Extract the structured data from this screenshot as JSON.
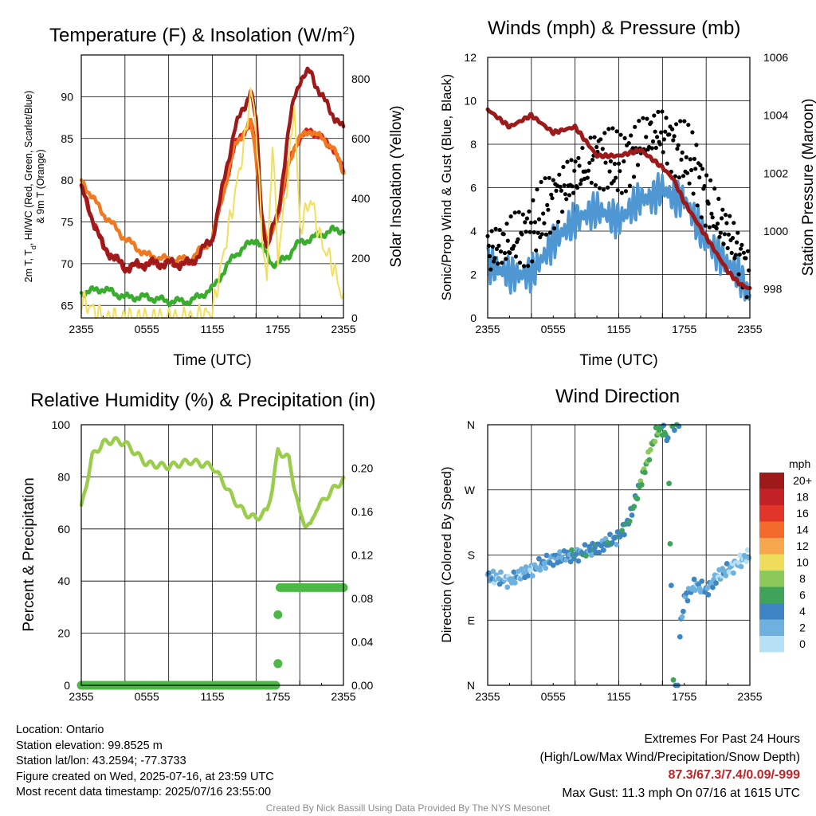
{
  "chart_data": [
    {
      "type": "line",
      "title": "Temperature (F) & Insolation (W/m2)",
      "title_main": "Temperature (F) & Insolation (W/m",
      "title_sup": "2",
      "title_end": ")",
      "xlabel": "Time (UTC)",
      "ylabel_line1": "2m T, T",
      "ylabel_sub": "d",
      "ylabel_line1_end": ", HI/WC (Red, Green, Scarlet/Blue)",
      "ylabel_line2": "& 9m T (Orange)",
      "y2label": "Solar Insolation (Yellow)",
      "x_ticks": [
        "2355",
        "0555",
        "1155",
        "1755",
        "2355"
      ],
      "y_ticks": [
        65,
        70,
        75,
        80,
        85,
        90
      ],
      "y2_ticks": [
        0,
        200,
        400,
        600,
        800
      ],
      "ylim": [
        63.5,
        95
      ],
      "y2lim": [
        0,
        880
      ],
      "x_hours": [
        0,
        2,
        4,
        6,
        8,
        10,
        12,
        14,
        15,
        15.5,
        16,
        16.5,
        17,
        17.5,
        18,
        19,
        19.5,
        20,
        21,
        22,
        23,
        24
      ],
      "series": [
        {
          "name": "2m T",
          "color": "#d7191c",
          "values": [
            79,
            72,
            69.5,
            70,
            70,
            70,
            73,
            84,
            86,
            87,
            84,
            76,
            72,
            74,
            76,
            82,
            84,
            85,
            86,
            85,
            84,
            81
          ]
        },
        {
          "name": "9m T",
          "color": "#f07a22",
          "values": [
            80,
            76,
            73,
            71,
            70.5,
            70.5,
            73,
            84,
            86,
            87,
            83,
            76,
            72,
            74,
            76,
            82,
            84,
            85,
            86,
            85,
            84,
            81
          ]
        },
        {
          "name": "Td",
          "color": "#3aad2e",
          "values": [
            66.5,
            67,
            66,
            66,
            65.5,
            65.5,
            67,
            71,
            72,
            72.5,
            73,
            72,
            71,
            70,
            70,
            71,
            72,
            72.5,
            73,
            73.5,
            74,
            74
          ]
        },
        {
          "name": "HI/WC",
          "color": "#9e1a1a",
          "values": [
            79,
            72,
            69.5,
            70,
            70,
            70,
            73,
            86,
            89,
            91,
            87,
            76,
            72,
            74,
            76,
            86,
            90,
            92,
            93,
            90,
            88,
            86
          ]
        },
        {
          "name": "Solar Insolation",
          "color": "#f2df5e",
          "axis": "y2",
          "values": [
            60,
            0,
            0,
            0,
            0,
            0,
            20,
            400,
            600,
            760,
            650,
            300,
            120,
            600,
            200,
            500,
            720,
            300,
            400,
            250,
            180,
            60
          ]
        }
      ]
    },
    {
      "type": "scatter",
      "title": "Winds (mph) & Pressure (mb)",
      "xlabel": "Time (UTC)",
      "ylabel": "Sonic/Prop Wind & Gust (Blue, Black)",
      "y2label": "Station Pressure (Maroon)",
      "x_ticks": [
        "2355",
        "0555",
        "1155",
        "1755",
        "2355"
      ],
      "y_ticks": [
        0,
        2,
        4,
        6,
        8,
        10,
        12
      ],
      "y2_ticks": [
        998,
        1000,
        1002,
        1004,
        1006
      ],
      "ylim": [
        0,
        12
      ],
      "y2lim": [
        997,
        1006
      ],
      "x_hours": [
        0,
        2,
        4,
        6,
        8,
        10,
        12,
        14,
        15,
        16,
        17,
        18,
        19,
        20,
        21,
        22,
        23,
        24
      ],
      "series": [
        {
          "name": "Wind",
          "color": "#4f97d2",
          "values": [
            2.5,
            2.0,
            2.0,
            3.5,
            4.5,
            5.0,
            4.5,
            5.5,
            5.5,
            6.0,
            5.5,
            5.5,
            4.5,
            3.5,
            3.0,
            2.5,
            2.0,
            1.0
          ]
        },
        {
          "name": "Gust",
          "color": "#000000",
          "values": [
            3.0,
            3.5,
            4.0,
            5.5,
            6.5,
            7.5,
            7.0,
            8.0,
            8.5,
            8.5,
            8.0,
            7.5,
            7.0,
            5.5,
            4.5,
            4.0,
            3.0,
            2.0
          ]
        },
        {
          "name": "Pressure",
          "color": "#9e1a1a",
          "axis": "y2",
          "values": [
            1004.2,
            1003.6,
            1004.0,
            1003.4,
            1003.6,
            1002.6,
            1002.6,
            1002.8,
            1002.5,
            1002.2,
            1001.8,
            1001.0,
            1000.4,
            999.8,
            999.2,
            998.6,
            998.2,
            998.0
          ]
        }
      ]
    },
    {
      "type": "line",
      "title": "Relative Humidity (%) & Precipitation (in)",
      "ylabel": "Percent & Precipitation",
      "x_ticks": [
        "2355",
        "0555",
        "1155",
        "1755",
        "2355"
      ],
      "y_ticks": [
        0,
        20,
        40,
        60,
        80,
        100
      ],
      "y2_ticks": [
        "0.00",
        "0.04",
        "0.08",
        "0.12",
        "0.16",
        "0.20"
      ],
      "ylim": [
        0,
        100
      ],
      "y2lim": [
        0,
        0.24
      ],
      "series": [
        {
          "name": "RH",
          "color": "#9acd4c",
          "x_hours": [
            0,
            1,
            2,
            3,
            4,
            5,
            6,
            8,
            10,
            11,
            12,
            13,
            14,
            15,
            16,
            17,
            17.5,
            18,
            19,
            20,
            20.5,
            21,
            21.5,
            22,
            23,
            24
          ],
          "values": [
            68,
            88,
            93,
            94,
            93,
            89,
            85,
            84,
            86,
            85,
            84,
            78,
            71,
            66,
            64,
            67,
            76,
            90,
            87,
            66,
            62,
            61,
            68,
            70,
            75,
            79
          ]
        },
        {
          "name": "Precipitation",
          "color": "#4db848",
          "axis": "y2",
          "x_hours": [
            0,
            17.9,
            18,
            18.05,
            18.1,
            18.2,
            24
          ],
          "values": [
            0,
            0,
            0.02,
            0.065,
            0.082,
            0.09,
            0.09
          ]
        }
      ]
    },
    {
      "type": "scatter",
      "title": "Wind Direction",
      "ylabel": "Direction (Colored By Speed)",
      "x_ticks": [
        "2355",
        "0555",
        "1155",
        "1755",
        "2355"
      ],
      "y_ticks": [
        "N",
        "E",
        "S",
        "W",
        "N"
      ],
      "ylim": [
        0,
        360
      ],
      "legend_title": "mph",
      "legend_labels": [
        "20+",
        "18",
        "16",
        "14",
        "12",
        "10",
        "8",
        "6",
        "4",
        "2",
        "0"
      ],
      "legend_colors": [
        "#9e1a1a",
        "#c12127",
        "#e2352a",
        "#f26b2c",
        "#f6a64c",
        "#eedc5b",
        "#8cc85a",
        "#3fa35a",
        "#3e86c3",
        "#6fb1de",
        "#b6e0f5"
      ],
      "series": [
        {
          "name": "Direction",
          "x_hours": [
            0,
            2,
            4,
            6,
            8,
            10,
            12,
            13,
            14,
            15,
            15.5,
            16,
            16.5,
            17,
            18,
            19,
            20,
            21,
            22,
            23,
            24
          ],
          "values": [
            150,
            145,
            160,
            175,
            180,
            190,
            205,
            230,
            280,
            330,
            350,
            355,
            340,
            0,
            120,
            140,
            130,
            150,
            160,
            170,
            180
          ],
          "speeds": [
            2,
            2,
            2,
            3,
            4,
            4,
            4,
            5,
            6,
            7,
            7,
            6,
            5,
            5,
            3,
            2,
            3,
            2,
            2,
            1,
            1
          ]
        }
      ]
    }
  ],
  "footer": {
    "location": "Location: Ontario",
    "elevation": "Station elevation: 99.8525 m",
    "latlon": "Station lat/lon: 43.2594; -77.3733",
    "created": "Figure created on Wed, 2025-07-16, at 23:59 UTC",
    "recent": "Most recent data timestamp: 2025/07/16 23:55:00",
    "extremes_title": "Extremes For Past 24 Hours",
    "extremes_sub": "(High/Low/Max Wind/Precipitation/Snow Depth)",
    "extremes_values": "87.3/67.3/7.4/0.09/-999",
    "extremes_color": "#c12127",
    "max_gust": "Max Gust: 11.3 mph On 07/16 at 1615 UTC",
    "credit": "Created By Nick Bassill Using Data Provided By The NYS Mesonet"
  }
}
